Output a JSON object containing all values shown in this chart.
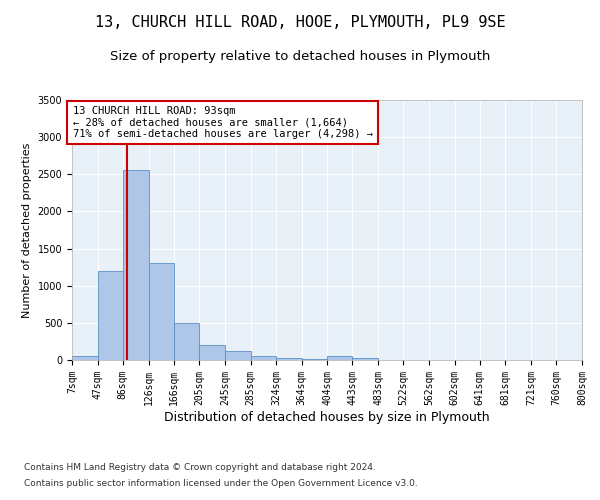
{
  "title1": "13, CHURCH HILL ROAD, HOOE, PLYMOUTH, PL9 9SE",
  "title2": "Size of property relative to detached houses in Plymouth",
  "xlabel": "Distribution of detached houses by size in Plymouth",
  "ylabel": "Number of detached properties",
  "bin_edges": [
    7,
    47,
    86,
    126,
    166,
    205,
    245,
    285,
    324,
    364,
    404,
    443,
    483,
    522,
    562,
    602,
    641,
    681,
    721,
    760,
    800
  ],
  "bar_heights": [
    50,
    1200,
    2560,
    1300,
    500,
    200,
    120,
    50,
    30,
    15,
    50,
    30,
    0,
    0,
    0,
    0,
    0,
    0,
    0,
    0
  ],
  "bar_color": "#aec6e8",
  "bar_edge_color": "#5a8fc4",
  "property_size": 93,
  "property_line_color": "#cc0000",
  "annotation_line1": "13 CHURCH HILL ROAD: 93sqm",
  "annotation_line2": "← 28% of detached houses are smaller (1,664)",
  "annotation_line3": "71% of semi-detached houses are larger (4,298) →",
  "annotation_box_color": "#cc0000",
  "ylim": [
    0,
    3500
  ],
  "yticks": [
    0,
    500,
    1000,
    1500,
    2000,
    2500,
    3000,
    3500
  ],
  "footer1": "Contains HM Land Registry data © Crown copyright and database right 2024.",
  "footer2": "Contains public sector information licensed under the Open Government Licence v3.0.",
  "bg_color": "#ffffff",
  "plot_bg_color": "#e8f0f8",
  "grid_color": "#ffffff",
  "title1_fontsize": 11,
  "title2_fontsize": 9.5,
  "tick_label_fontsize": 7,
  "ylabel_fontsize": 8,
  "xlabel_fontsize": 9,
  "annotation_fontsize": 7.5,
  "footer_fontsize": 6.5
}
